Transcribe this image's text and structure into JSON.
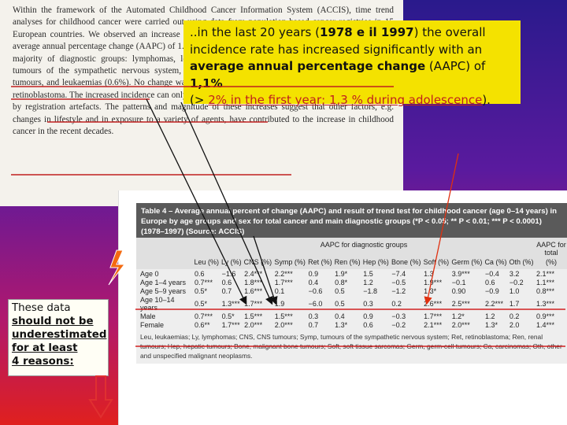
{
  "abstract": {
    "text": "Within the framework of the Automated Childhood Cancer Information System (ACCIS), time trend analyses for childhood cancer were carried out using data from population-based cancer registries in 15 European countries. We observed an increase in the overall incidence rate based on 77,111 cases. The average annual percentage change (AAPC) of 1.1% was significant in most geographical regions and in the majority of diagnostic groups: lymphomas, leukaemias, soft tissue sarcomas (1.8%), brain tumours, tumours of the sympathetic nervous system, germ cell tumours, carcinomas, hepatic tumours, renal tumours, and leukaemias (0.6%). No change was seen in incidence of bone tumours, hepatic tumours and retinoblastoma. The increased incidence can only partly be explained by changes in diagnostic methods and by registration artefacts. The patterns and magnitude of these increases suggest that other factors, e.g. changes in lifestyle and in exposure to a variety of agents, have contributed to the increase in childhood cancer in the recent decades."
  },
  "callout": {
    "line1": "..in the last 20 years (",
    "years": "1978 e il 1997",
    "line1b": ") the overall incidence rate has increased significantly with an",
    "line2": "average annual percentage change",
    "line2b": " (AAPC) of ",
    "value": "1,1%",
    "line3a": "(> ",
    "first_year": "2% in the first year; 1,3 % during adolescence",
    "line3b": ")."
  },
  "table": {
    "title": "Table 4 – Average annual percent of change (AAPC) and result of trend test for childhood cancer (age 0–14 years) in Europe by age groups and sex for total cancer and main diagnostic groups (*P < 0.05; ** P < 0.01; *** P < 0.0001) (1978–1997) (Source: ACCIS)",
    "group_header": "AAPC for diagnostic groups",
    "total_header": "AAPC for total",
    "columns": [
      "Leu (%)",
      "Ly (%)",
      "CNS (%)",
      "Symp (%)",
      "Ret (%)",
      "Ren (%)",
      "Hep (%)",
      "Bone (%)",
      "Soft (%)",
      "Germ (%)",
      "Ca (%)",
      "Oth (%)",
      "(%)"
    ],
    "rows": [
      {
        "label": "Age 0",
        "cells": [
          "0.6",
          "−1.6",
          "2.4***",
          "2.2***",
          "0.9",
          "1.9*",
          "1.5",
          "−7.4",
          "1.3",
          "3.9***",
          "−0.4",
          "3.2",
          "2.1***"
        ]
      },
      {
        "label": "Age 1–4 years",
        "cells": [
          "0.7***",
          "0.6",
          "1.8***",
          "1.7***",
          "0.4",
          "0.8*",
          "1.2",
          "−0.5",
          "1.9***",
          "−0.1",
          "0.6",
          "−0.2",
          "1.1***"
        ]
      },
      {
        "label": "Age 5–9 years",
        "cells": [
          "0.5*",
          "0.7",
          "1.6***",
          "0.1",
          "−0.6",
          "0.5",
          "−1.8",
          "−1.2",
          "1.3*",
          "0.90",
          "−0.9",
          "1.0",
          "0.8***"
        ]
      },
      {
        "label": "Age 10–14 years",
        "cells": [
          "0.5*",
          "1.3***",
          "1.7***",
          "1.9",
          "−6.0",
          "0.5",
          "0.3",
          "0.2",
          "2.6***",
          "2.5***",
          "2.2***",
          "1.7",
          "1.3***"
        ]
      },
      {
        "label": "Male",
        "cells": [
          "0.7***",
          "0.5*",
          "1.5***",
          "1.5***",
          "0.3",
          "0.4",
          "0.9",
          "−0.3",
          "1.7***",
          "1.2*",
          "1.2",
          "0.2",
          "0.9***"
        ]
      },
      {
        "label": "Female",
        "cells": [
          "0.6**",
          "1.7***",
          "2.0***",
          "2.0***",
          "0.7",
          "1.3*",
          "0.6",
          "−0.2",
          "2.1***",
          "2.0***",
          "1.3*",
          "2.0",
          "1.4***"
        ]
      }
    ],
    "footnote": "Leu, leukaemias; Ly, lymphomas; CNS, CNS tumours; Symp, tumours of the sympathetic nervous system; Ret, retinoblastoma; Ren, renal tumours; Hep, hepatic tumours; Bone, malignant bone tumours; Soft, soft tissue sarcomas; Germ, germ-cell tumours; Ca, carcinomas; Oth, other and unspecified malignant neoplasms."
  },
  "note": {
    "line1": "These data",
    "line2": "should not be",
    "line3": "underestimated",
    "line4": "for at least",
    "line5": "4 reasons:"
  },
  "colors": {
    "callout_bg": "#f4e200",
    "highlight": "#c0201e",
    "table_title_bg": "#5a5a5a"
  }
}
